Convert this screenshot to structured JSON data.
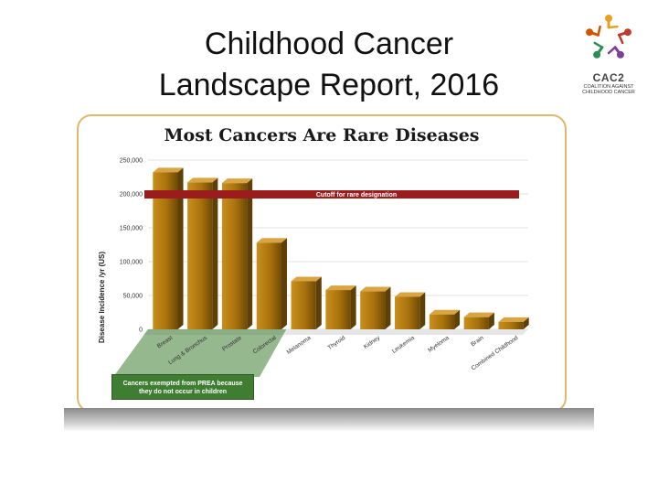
{
  "slide": {
    "title_line1": "Childhood Cancer",
    "title_line2": "Landscape Report, 2016"
  },
  "logo": {
    "name": "CAC2",
    "subtitle_line1": "COALITION AGAINST",
    "subtitle_line2": "CHILDHOOD CANCER",
    "colors": [
      "#e8a020",
      "#c0392b",
      "#7b3f9e",
      "#2e8b57",
      "#d35400"
    ]
  },
  "chart_data": {
    "type": "bar",
    "title": "Most Cancers Are Rare Diseases",
    "ylabel": "Disease Incidence /yr (US)",
    "xlabel": "",
    "categories": [
      "Breast",
      "Lung & Bronchus",
      "Prostate",
      "Colorectal",
      "Melanoma",
      "Thyroid",
      "Kidney",
      "Leukemia",
      "Myeloma",
      "Brain",
      "Combined Childhood"
    ],
    "values": [
      232000,
      217000,
      216000,
      128000,
      71000,
      58000,
      56000,
      48000,
      22000,
      18000,
      11000
    ],
    "ylim": [
      0,
      250000
    ],
    "yticks": [
      "0",
      "50,000",
      "100,000",
      "150,000",
      "200,000",
      "250,000"
    ],
    "ytick_values": [
      0,
      50000,
      100000,
      150000,
      200000,
      250000
    ],
    "cutoff": {
      "value": 200000,
      "label": "Cutoff for rare designation",
      "color": "#9b1c1c"
    },
    "exempt_note": {
      "line1": "Cancers exempted from PREA because",
      "line2": "they do not occur in children",
      "color": "#3f7d33"
    },
    "exempt_count": 4,
    "bar_color": "#a8720c",
    "grid": true
  }
}
